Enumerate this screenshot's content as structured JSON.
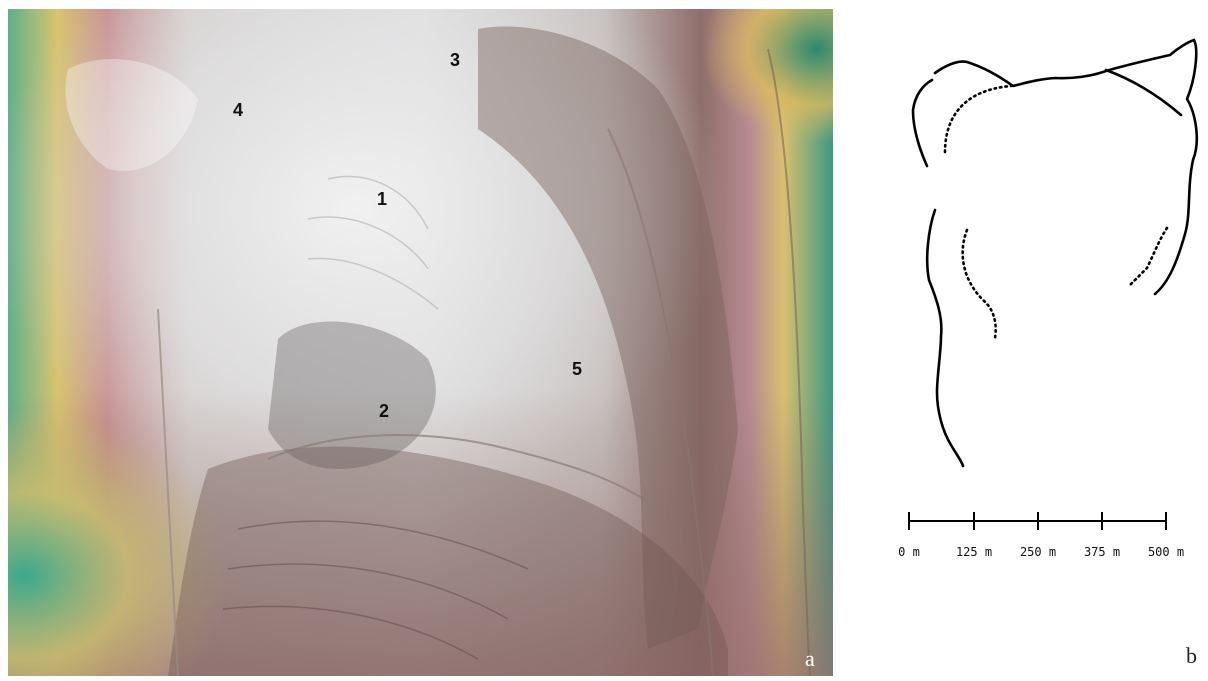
{
  "panel_a": {
    "letter": "a",
    "site_labels": [
      {
        "id": "1",
        "text": "1"
      },
      {
        "id": "2",
        "text": "2"
      },
      {
        "id": "3",
        "text": "3"
      },
      {
        "id": "4",
        "text": "4"
      },
      {
        "id": "5",
        "text": "5"
      }
    ],
    "colors": {
      "low_elevation": "#3aa88e",
      "mid_low": "#d8c06a",
      "mid": "#b07a7a",
      "high": "#e6e6e6",
      "ridge_dark": "#6b5a55"
    }
  },
  "panel_b": {
    "letter": "b",
    "scale_bar": {
      "ticks": [
        "0 m",
        "125 m",
        "250 m",
        "375 m",
        "500 m"
      ]
    },
    "colors": {
      "line": "#000000"
    }
  }
}
